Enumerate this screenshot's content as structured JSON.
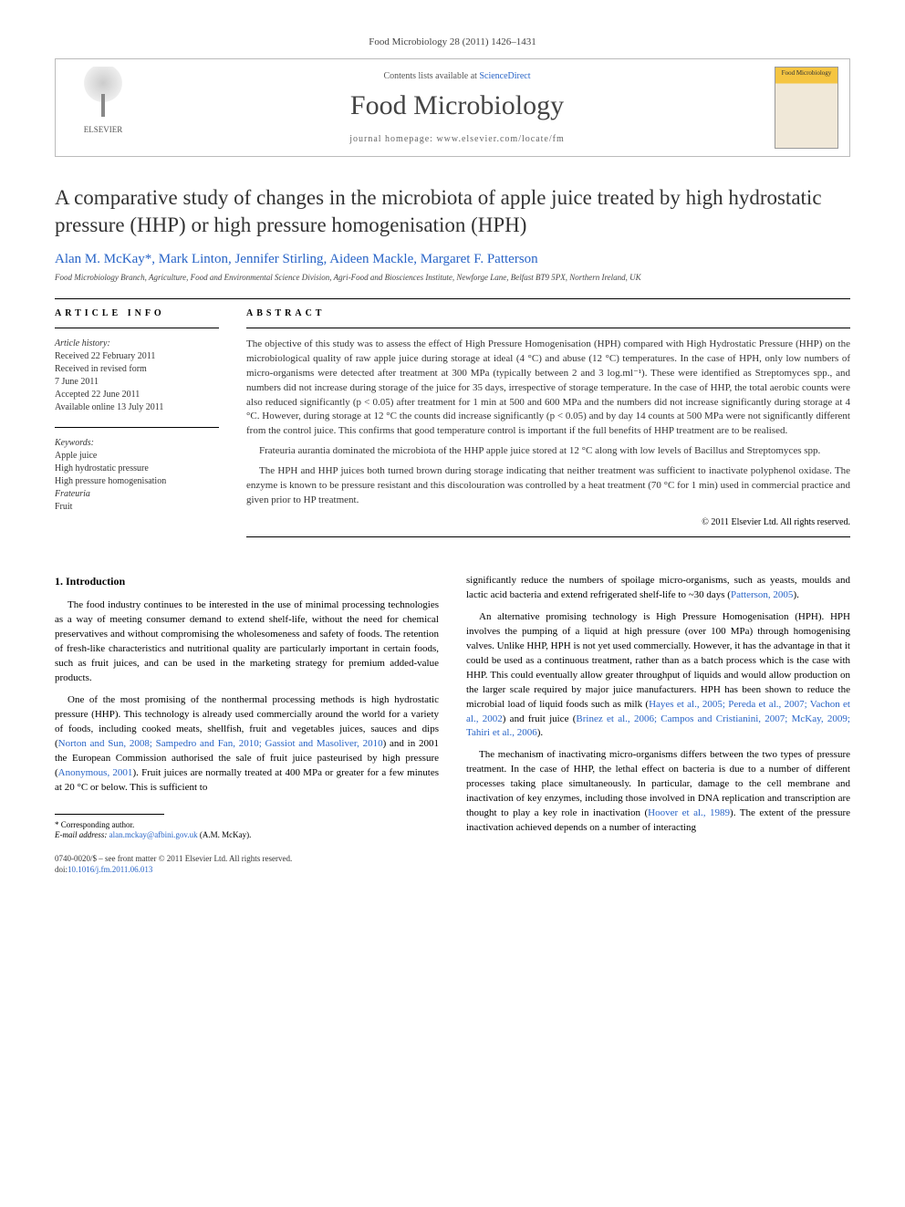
{
  "journal_ref": "Food Microbiology 28 (2011) 1426–1431",
  "header": {
    "contents_prefix": "Contents lists available at ",
    "contents_link": "ScienceDirect",
    "journal_title": "Food Microbiology",
    "homepage_prefix": "journal homepage: ",
    "homepage_url": "www.elsevier.com/locate/fm",
    "publisher_name": "ELSEVIER",
    "cover_label": "Food Microbiology"
  },
  "article": {
    "title": "A comparative study of changes in the microbiota of apple juice treated by high hydrostatic pressure (HHP) or high pressure homogenisation (HPH)",
    "authors": "Alan M. McKay*, Mark Linton, Jennifer Stirling, Aideen Mackle, Margaret F. Patterson",
    "affiliation": "Food Microbiology Branch, Agriculture, Food and Environmental Science Division, Agri-Food and Biosciences Institute, Newforge Lane, Belfast BT9 5PX, Northern Ireland, UK"
  },
  "info": {
    "section_label": "ARTICLE INFO",
    "history_label": "Article history:",
    "received": "Received 22 February 2011",
    "revised": "Received in revised form",
    "revised_date": "7 June 2011",
    "accepted": "Accepted 22 June 2011",
    "online": "Available online 13 July 2011",
    "keywords_label": "Keywords:",
    "keywords": [
      "Apple juice",
      "High hydrostatic pressure",
      "High pressure homogenisation",
      "Frateuria",
      "Fruit"
    ]
  },
  "abstract": {
    "section_label": "ABSTRACT",
    "p1": "The objective of this study was to assess the effect of High Pressure Homogenisation (HPH) compared with High Hydrostatic Pressure (HHP) on the microbiological quality of raw apple juice during storage at ideal (4 °C) and abuse (12 °C) temperatures. In the case of HPH, only low numbers of micro-organisms were detected after treatment at 300 MPa (typically between 2 and 3 log.ml⁻¹). These were identified as Streptomyces spp., and numbers did not increase during storage of the juice for 35 days, irrespective of storage temperature. In the case of HHP, the total aerobic counts were also reduced significantly (p < 0.05) after treatment for 1 min at 500 and 600 MPa and the numbers did not increase significantly during storage at 4 °C. However, during storage at 12 °C the counts did increase significantly (p < 0.05) and by day 14 counts at 500 MPa were not significantly different from the control juice. This confirms that good temperature control is important if the full benefits of HHP treatment are to be realised.",
    "p2": "Frateuria aurantia dominated the microbiota of the HHP apple juice stored at 12 °C along with low levels of Bacillus and Streptomyces spp.",
    "p3": "The HPH and HHP juices both turned brown during storage indicating that neither treatment was sufficient to inactivate polyphenol oxidase. The enzyme is known to be pressure resistant and this discolouration was controlled by a heat treatment (70 °C for 1 min) used in commercial practice and given prior to HP treatment.",
    "copyright": "© 2011 Elsevier Ltd. All rights reserved."
  },
  "body": {
    "intro_heading": "1. Introduction",
    "intro_p1": "The food industry continues to be interested in the use of minimal processing technologies as a way of meeting consumer demand to extend shelf-life, without the need for chemical preservatives and without compromising the wholesomeness and safety of foods. The retention of fresh-like characteristics and nutritional quality are particularly important in certain foods, such as fruit juices, and can be used in the marketing strategy for premium added-value products.",
    "intro_p2_a": "One of the most promising of the nonthermal processing methods is high hydrostatic pressure (HHP). This technology is already used commercially around the world for a variety of foods, including cooked meats, shellfish, fruit and vegetables juices, sauces and dips (",
    "intro_p2_cite1": "Norton and Sun, 2008; Sampedro and Fan, 2010; Gassiot and Masoliver, 2010",
    "intro_p2_b": ") and in 2001 the European Commission authorised the sale of fruit juice pasteurised by high pressure (",
    "intro_p2_cite2": "Anonymous, 2001",
    "intro_p2_c": "). Fruit juices are normally treated at 400 MPa or greater for a few minutes at 20 °C or below. This is sufficient to",
    "col2_p1_a": "significantly reduce the numbers of spoilage micro-organisms, such as yeasts, moulds and lactic acid bacteria and extend refrigerated shelf-life to ~30 days (",
    "col2_p1_cite": "Patterson, 2005",
    "col2_p1_b": ").",
    "col2_p2_a": "An alternative promising technology is High Pressure Homogenisation (HPH). HPH involves the pumping of a liquid at high pressure (over 100 MPa) through homogenising valves. Unlike HHP, HPH is not yet used commercially. However, it has the advantage in that it could be used as a continuous treatment, rather than as a batch process which is the case with HHP. This could eventually allow greater throughput of liquids and would allow production on the larger scale required by major juice manufacturers. HPH has been shown to reduce the microbial load of liquid foods such as milk (",
    "col2_p2_cite1": "Hayes et al., 2005; Pereda et al., 2007; Vachon et al., 2002",
    "col2_p2_b": ") and fruit juice (",
    "col2_p2_cite2": "Brinez et al., 2006; Campos and Cristianini, 2007; McKay, 2009; Tahiri et al., 2006",
    "col2_p2_c": ").",
    "col2_p3_a": "The mechanism of inactivating micro-organisms differs between the two types of pressure treatment. In the case of HHP, the lethal effect on bacteria is due to a number of different processes taking place simultaneously. In particular, damage to the cell membrane and inactivation of key enzymes, including those involved in DNA replication and transcription are thought to play a key role in inactivation (",
    "col2_p3_cite": "Hoover et al., 1989",
    "col2_p3_b": "). The extent of the pressure inactivation achieved depends on a number of interacting"
  },
  "footnote": {
    "corr_label": "* Corresponding author.",
    "email_label": "E-mail address: ",
    "email": "alan.mckay@afbini.gov.uk",
    "email_suffix": " (A.M. McKay)."
  },
  "footer": {
    "issn": "0740-0020/$ – see front matter © 2011 Elsevier Ltd. All rights reserved.",
    "doi_label": "doi:",
    "doi": "10.1016/j.fm.2011.06.013"
  },
  "colors": {
    "link": "#2864c7",
    "text": "#333333",
    "border": "#bbbbbb"
  }
}
